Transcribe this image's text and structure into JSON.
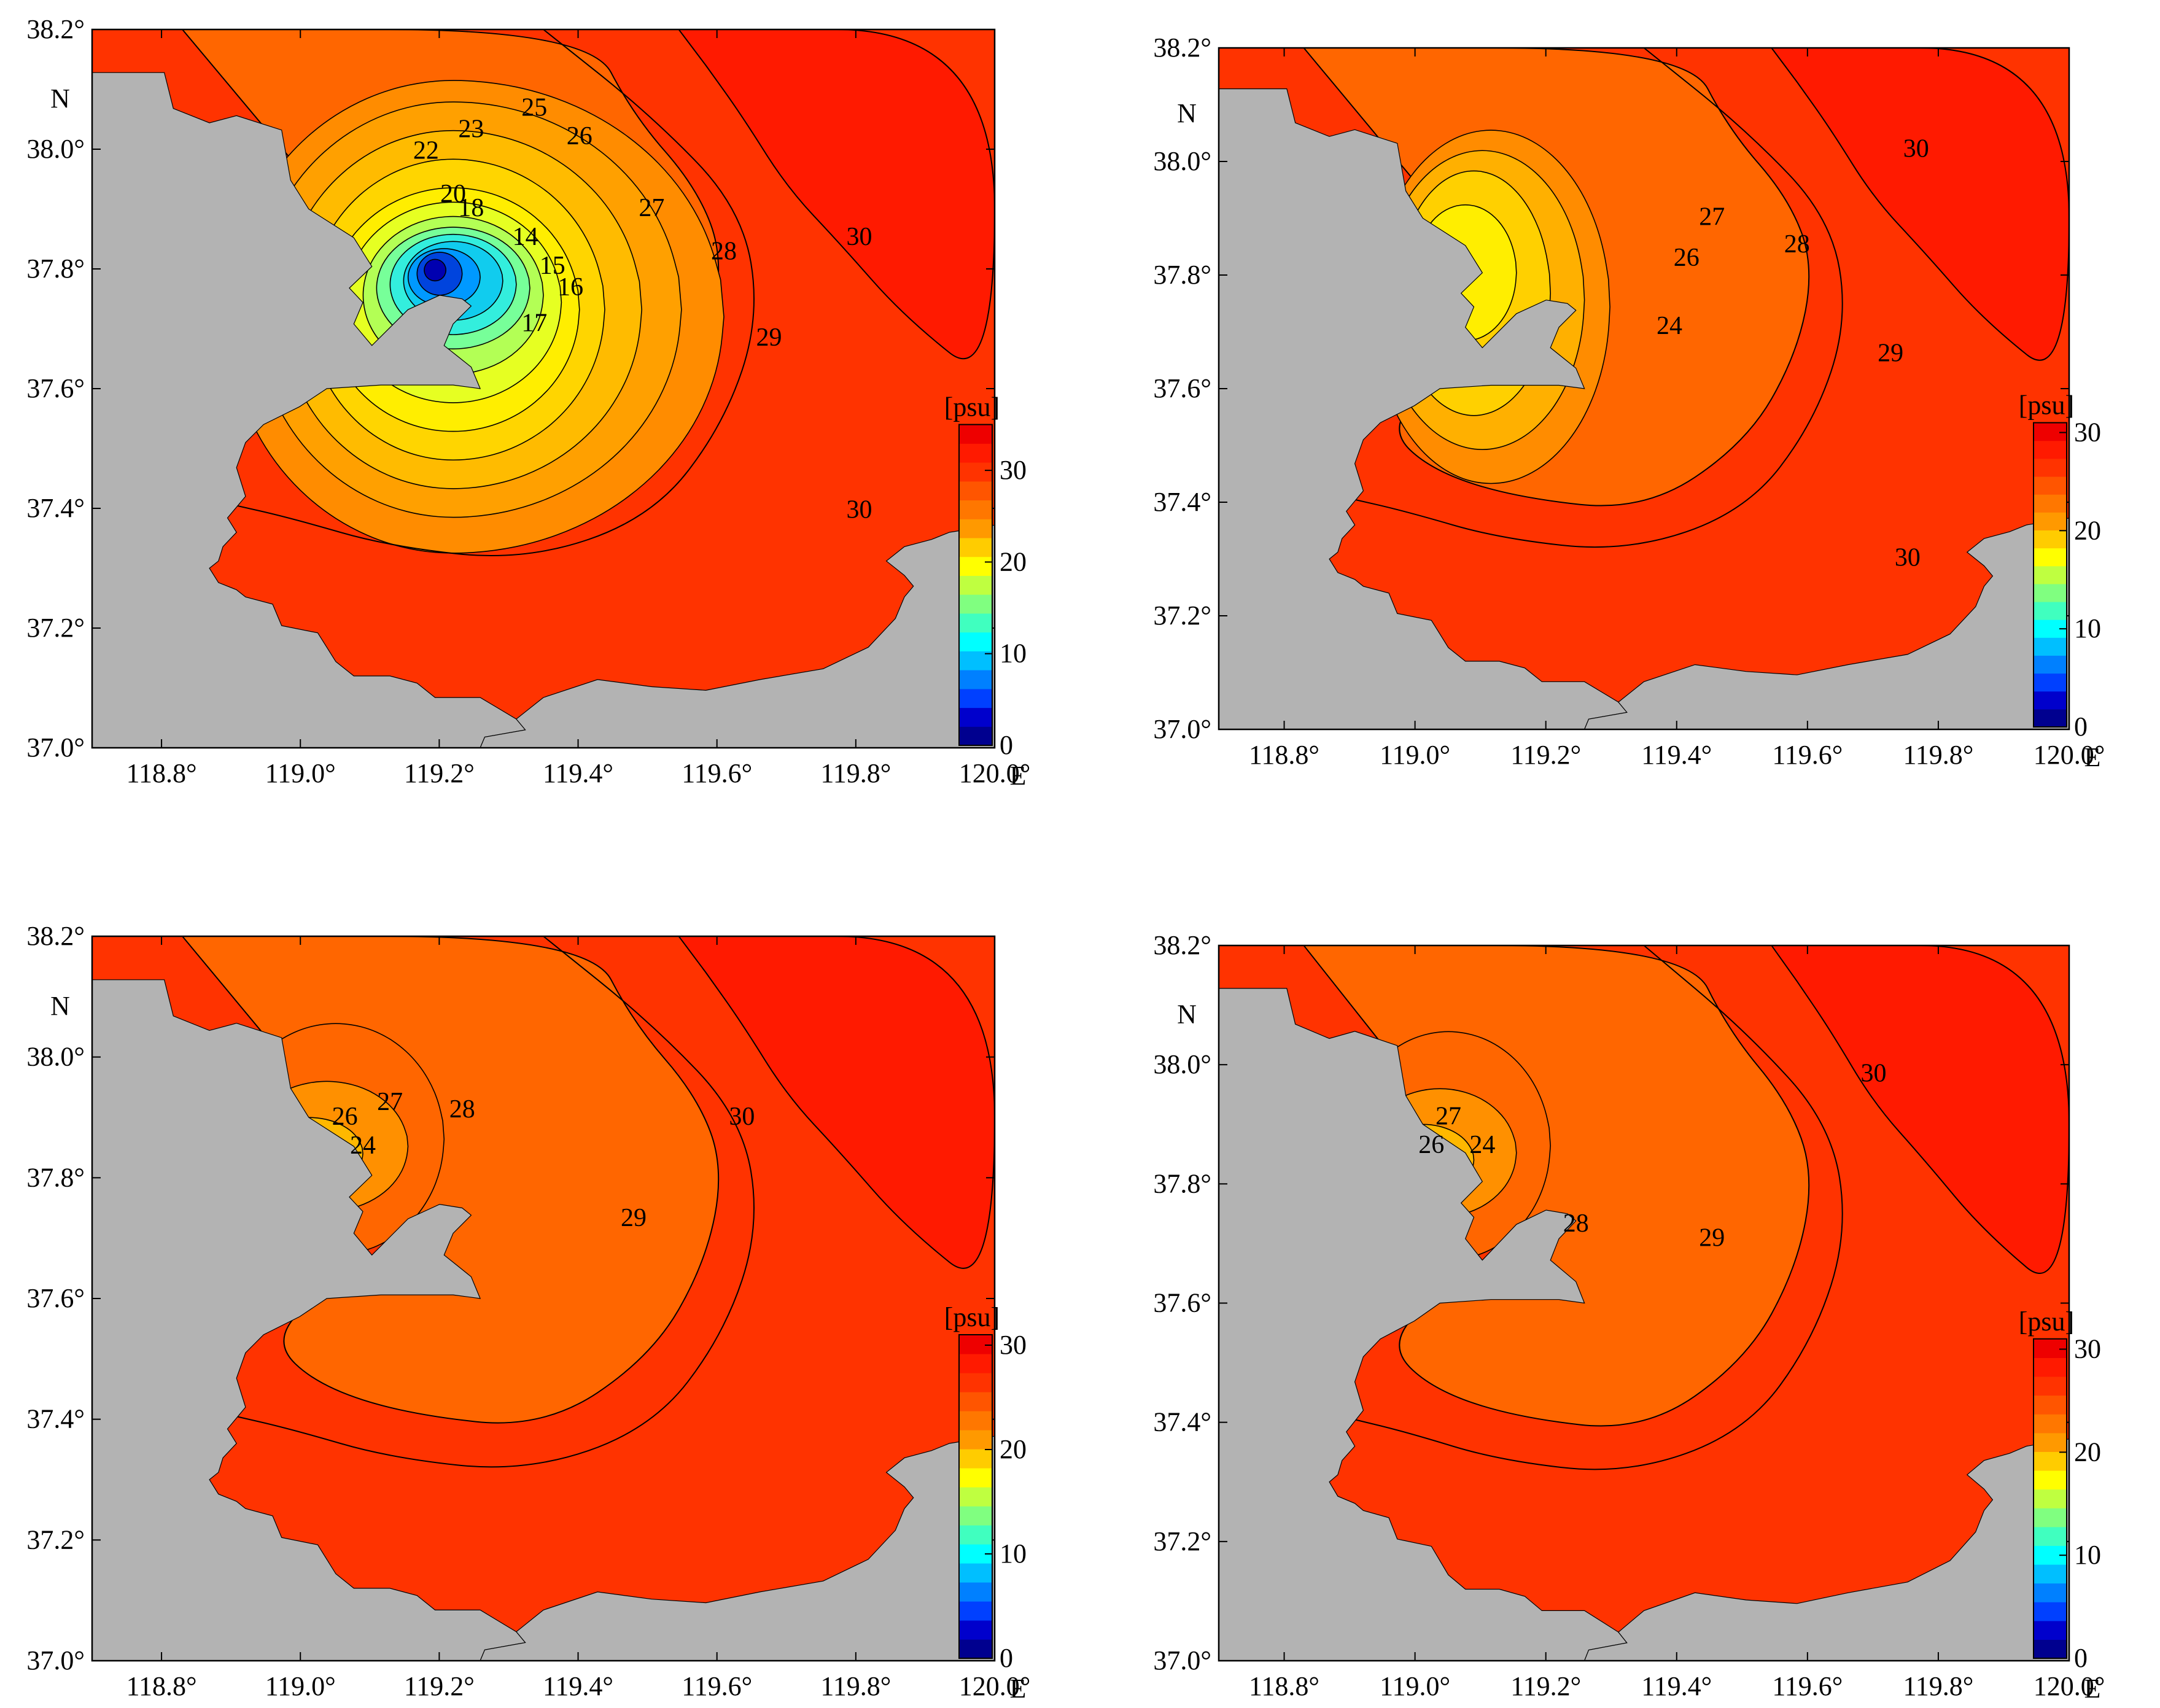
{
  "figure": {
    "land_color": "#b3b3b3",
    "contour_line_color": "#000000",
    "colorbar_unit": "[psu]",
    "lat_ticks": [
      "37.0°",
      "37.2°",
      "37.4°",
      "37.6°",
      "37.8°",
      "38.0°",
      "38.2°"
    ],
    "lon_ticks": [
      "118.8°",
      "119.0°",
      "119.2°",
      "119.4°",
      "119.6°",
      "119.8°",
      "120.0°"
    ],
    "north_label": "N",
    "east_label": "E",
    "colormap": [
      "#00008f",
      "#0000cc",
      "#0040ff",
      "#0080ff",
      "#00bfff",
      "#00ffff",
      "#40ffbf",
      "#80ff80",
      "#bfff40",
      "#ffff00",
      "#ffcc00",
      "#ff9900",
      "#ff7700",
      "#ff5500",
      "#ff3300",
      "#ff1a00",
      "#ee0000"
    ]
  },
  "panels": [
    {
      "id": "panel-1",
      "colorbar_ticks": [
        "0",
        "10",
        "20",
        "30"
      ],
      "colorbar_max": 35,
      "contour_labels": [
        "22",
        "23",
        "25",
        "26",
        "27",
        "28",
        "29",
        "30",
        "30",
        "20",
        "18",
        "14",
        "15",
        "16",
        "17"
      ],
      "plume": "strong"
    },
    {
      "id": "panel-2",
      "colorbar_ticks": [
        "0",
        "10",
        "20",
        "30"
      ],
      "colorbar_max": 31,
      "contour_labels": [
        "30",
        "27",
        "26",
        "28",
        "24",
        "29",
        "30"
      ],
      "plume": "medium"
    },
    {
      "id": "panel-3",
      "colorbar_ticks": [
        "0",
        "10",
        "20",
        "30"
      ],
      "colorbar_max": 31,
      "contour_labels": [
        "26",
        "27",
        "28",
        "24",
        "30",
        "29"
      ],
      "plume": "weak"
    },
    {
      "id": "panel-4",
      "colorbar_ticks": [
        "0",
        "10",
        "20",
        "30"
      ],
      "colorbar_max": 31,
      "contour_labels": [
        "27",
        "26",
        "24",
        "30",
        "28",
        "29"
      ],
      "plume": "weak"
    }
  ]
}
